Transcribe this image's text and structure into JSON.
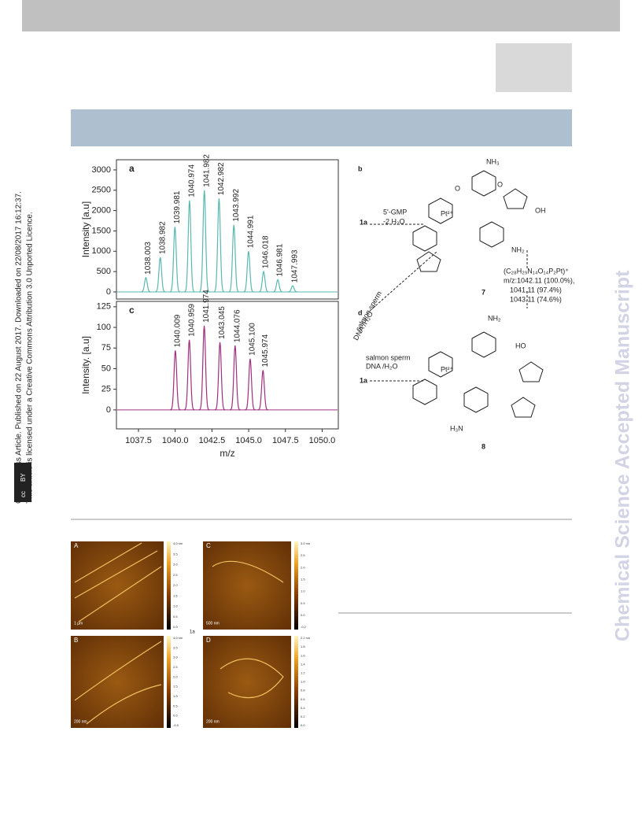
{
  "sidebar": {
    "line1": "Open Access Article. Published on 22 August 2017. Downloaded on 22/08/2017 16:12:37.",
    "line2": "This article is licensed under a Creative Commons Attribution 3.0 Unported Licence.",
    "badge": [
      "cc",
      "BY"
    ]
  },
  "watermark": "Chemical Science Accepted Manuscript",
  "chart_data": [
    {
      "type": "line",
      "panel": "a",
      "ylabel": "Intensity [a.u]",
      "color": "#5bb8b0",
      "x": [
        1038.003,
        1038.982,
        1039.981,
        1040.974,
        1041.982,
        1042.982,
        1043.992,
        1044.991,
        1046.018,
        1046.981,
        1047.993
      ],
      "values": [
        350,
        850,
        1600,
        2250,
        2500,
        2300,
        1650,
        1000,
        500,
        300,
        150
      ],
      "xlim": [
        1036,
        1051.1
      ],
      "ylim": [
        -175,
        3250
      ],
      "yticks": [
        0,
        500,
        1000,
        1500,
        2000,
        2500,
        3000
      ]
    },
    {
      "type": "line",
      "panel": "c",
      "ylabel": "Intensity. [a.u]",
      "color": "#a0307f",
      "xlabel": "m/z",
      "x": [
        1040.009,
        1040.959,
        1041.974,
        1043.045,
        1044.076,
        {
          "value": 1045.1,
          "label": "1045.100"
        },
        1045.974
      ],
      "values": [
        72,
        85,
        102,
        82,
        78,
        62,
        48
      ],
      "xlim": [
        1036,
        1051.1
      ],
      "ylim": [
        -23,
        131.5
      ],
      "yticks": [
        0,
        25,
        50,
        75,
        100,
        125
      ],
      "xticks": [
        1037.5,
        {
          "value": 1040,
          "label": "1040.0"
        },
        1042.5,
        {
          "value": 1045,
          "label": "1045.0"
        },
        1047.5,
        {
          "value": 1050,
          "label": "1050.0"
        }
      ]
    }
  ],
  "scheme": {
    "texts": [
      "b",
      "5'-GMP",
      "-2 H₂O",
      "1a",
      "Pt²⁺",
      "NH₃",
      "O",
      "O",
      "OH",
      "NH₂",
      "7",
      "(C₂₈H₂₉N₁₄O₁₄P₂Pt)⁺",
      "m/z:1042.11 (100.0%),",
      "1041.11 (97.4%)",
      "1043.11 (74.6%)",
      "d",
      "salmon sperm",
      "DNA /H₂O",
      "salmon sperm",
      "DNA /H₂O",
      "1a",
      "Pt²⁺",
      "HO",
      "NH₂",
      "H₃N",
      "8"
    ]
  },
  "figure2": {
    "panels": [
      {
        "letter": "A",
        "scale": "1 µm",
        "bar": [
          "4.0 nm",
          "3.5",
          "3.0",
          "2.5",
          "2.0",
          "1.5",
          "1.0",
          "0.5",
          "0.0"
        ]
      },
      {
        "letter": "C",
        "scale": "500 nm",
        "bar": [
          "3.0 nm",
          "2.5",
          "2.0",
          "1.5",
          "1.0",
          "0.5",
          "0.0",
          "-0.2"
        ]
      },
      {
        "letter": "B",
        "scale": "200 nm",
        "bar": [
          "4.0 nm",
          "3.5",
          "3.0",
          "2.5",
          "2.0",
          "1.5",
          "1.0",
          "0.5",
          "0.0",
          "-0.5"
        ]
      },
      {
        "letter": "D",
        "scale": "200 nm",
        "bar": [
          "2.2 nm",
          "1.8",
          "1.6",
          "1.4",
          "1.2",
          "1.0",
          "0.8",
          "0.6",
          "0.4",
          "0.2",
          "0.0"
        ]
      }
    ],
    "middle_label": "1a"
  }
}
